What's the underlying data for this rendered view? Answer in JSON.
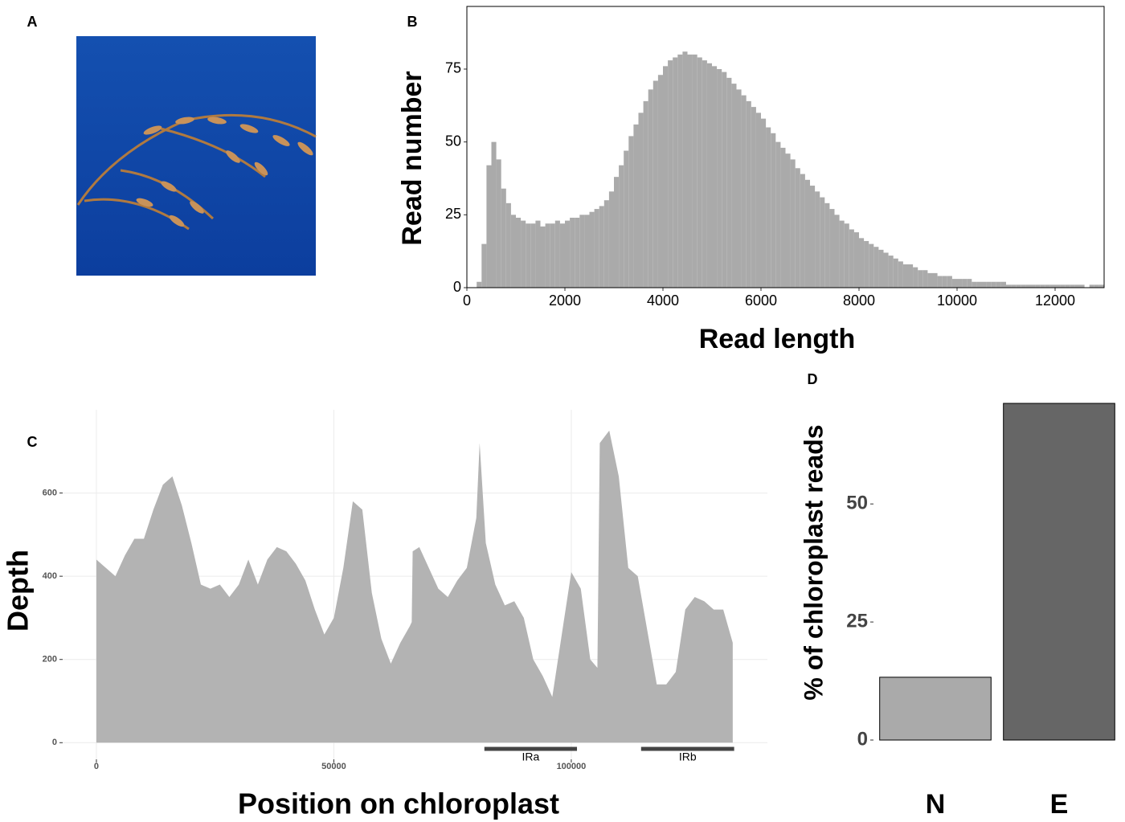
{
  "image_panel": {
    "panel": "A"
  },
  "chart_data": [
    {
      "type": "histogram",
      "panel": "B",
      "x_label": "Read length",
      "y_label": "Read number",
      "color": "#aaaaaa",
      "xlim": [
        0,
        13000
      ],
      "ylim": [
        0,
        96.5
      ],
      "xticks": [
        0,
        2000,
        4000,
        6000,
        8000,
        10000,
        12000
      ],
      "yticks": [
        0,
        25,
        50,
        75
      ],
      "border": true,
      "bins": [
        0,
        100,
        200,
        300,
        400,
        500,
        600,
        700,
        800,
        900,
        1000,
        1100,
        1200,
        1300,
        1400,
        1500,
        1600,
        1700,
        1800,
        1900,
        2000,
        2100,
        2200,
        2300,
        2400,
        2500,
        2600,
        2700,
        2800,
        2900,
        3000,
        3100,
        3200,
        3300,
        3400,
        3500,
        3600,
        3700,
        3800,
        3900,
        4000,
        4100,
        4200,
        4300,
        4400,
        4500,
        4600,
        4700,
        4800,
        4900,
        5000,
        5100,
        5200,
        5300,
        5400,
        5500,
        5600,
        5700,
        5800,
        5900,
        6000,
        6100,
        6200,
        6300,
        6400,
        6500,
        6600,
        6700,
        6800,
        6900,
        7000,
        7100,
        7200,
        7300,
        7400,
        7500,
        7600,
        7700,
        7800,
        7900,
        8000,
        8100,
        8200,
        8300,
        8400,
        8500,
        8600,
        8700,
        8800,
        8900,
        9000,
        9100,
        9200,
        9300,
        9400,
        9500,
        9600,
        9700,
        9800,
        9900,
        10000,
        10100,
        10200,
        10300,
        10400,
        10500,
        10600,
        10700,
        10800,
        10900,
        11000,
        11100,
        11200,
        11300,
        11400,
        11500,
        11600,
        11700,
        11800,
        11900,
        12000,
        12100,
        12200,
        12300,
        12400,
        12500,
        12600,
        12700,
        12800,
        12900,
        13000
      ],
      "counts": [
        0,
        0,
        2,
        15,
        42,
        50,
        44,
        34,
        29,
        25,
        24,
        23,
        22,
        22,
        23,
        21,
        22,
        22,
        23,
        22,
        23,
        24,
        24,
        25,
        25,
        26,
        27,
        28,
        30,
        33,
        38,
        42,
        47,
        52,
        56,
        60,
        64,
        68,
        71,
        73,
        76,
        78,
        79,
        80,
        81,
        80,
        80,
        79,
        78,
        77,
        76,
        75,
        74,
        72,
        70,
        68,
        66,
        64,
        62,
        60,
        58,
        55,
        53,
        50,
        48,
        46,
        44,
        41,
        39,
        37,
        35,
        33,
        31,
        29,
        27,
        25,
        23,
        22,
        20,
        19,
        17,
        16,
        15,
        14,
        13,
        12,
        11,
        10,
        9,
        8,
        8,
        7,
        6,
        6,
        5,
        5,
        4,
        4,
        4,
        3,
        3,
        3,
        3,
        2,
        2,
        2,
        2,
        2,
        2,
        2,
        1,
        1,
        1,
        1,
        1,
        1,
        1,
        1,
        1,
        1,
        1,
        1,
        1,
        1,
        1,
        1,
        0,
        1,
        1,
        1
      ]
    },
    {
      "type": "area",
      "panel": "C",
      "x_label": "Position on chloroplast",
      "y_label": "Depth",
      "color": "#b3b3b3",
      "grid": true,
      "xlim": [
        -7100,
        141300
      ],
      "ylim": [
        -40,
        800
      ],
      "xticks": [
        0,
        50000,
        100000
      ],
      "yticks": [
        0,
        200,
        400,
        600
      ],
      "x": [
        0,
        2000,
        4000,
        6000,
        8000,
        10000,
        12000,
        14000,
        16000,
        18000,
        20000,
        22000,
        24000,
        26000,
        28000,
        30000,
        32000,
        34000,
        36000,
        38000,
        40000,
        42000,
        44000,
        46000,
        48000,
        50000,
        52000,
        54000,
        56000,
        58000,
        60000,
        62000,
        64000,
        66000,
        66400,
        66600,
        68000,
        70000,
        72000,
        74000,
        76000,
        78000,
        80000,
        80700,
        82000,
        84000,
        86000,
        88000,
        90000,
        92000,
        94000,
        96000,
        98000,
        100000,
        102000,
        104000,
        105500,
        106000,
        108000,
        110000,
        112000,
        114000,
        116000,
        118000,
        120000,
        122000,
        124000,
        126000,
        128000,
        130000,
        132000,
        134000
      ],
      "values": [
        440,
        420,
        400,
        450,
        490,
        490,
        560,
        620,
        640,
        570,
        480,
        380,
        370,
        380,
        350,
        380,
        440,
        380,
        440,
        470,
        460,
        430,
        390,
        320,
        260,
        300,
        420,
        580,
        560,
        360,
        250,
        190,
        240,
        280,
        290,
        460,
        470,
        420,
        370,
        350,
        390,
        420,
        540,
        720,
        480,
        380,
        330,
        340,
        300,
        200,
        160,
        110,
        260,
        410,
        370,
        200,
        180,
        720,
        750,
        640,
        420,
        400,
        270,
        140,
        140,
        170,
        320,
        350,
        340,
        320,
        320,
        240
      ],
      "regions": [
        {
          "label": "IRa",
          "start": 81700,
          "end": 101200
        },
        {
          "label": "IRb",
          "start": 114700,
          "end": 134300
        }
      ]
    },
    {
      "type": "bar",
      "panel": "D",
      "y_label": "% of chloroplast reads",
      "ylim": [
        0,
        71.3
      ],
      "yticks": [
        0,
        25,
        50
      ],
      "categories": [
        "N",
        "E"
      ],
      "values": [
        13.3,
        71.3
      ],
      "colors": [
        "#aaaaaa",
        "#666666"
      ]
    }
  ]
}
